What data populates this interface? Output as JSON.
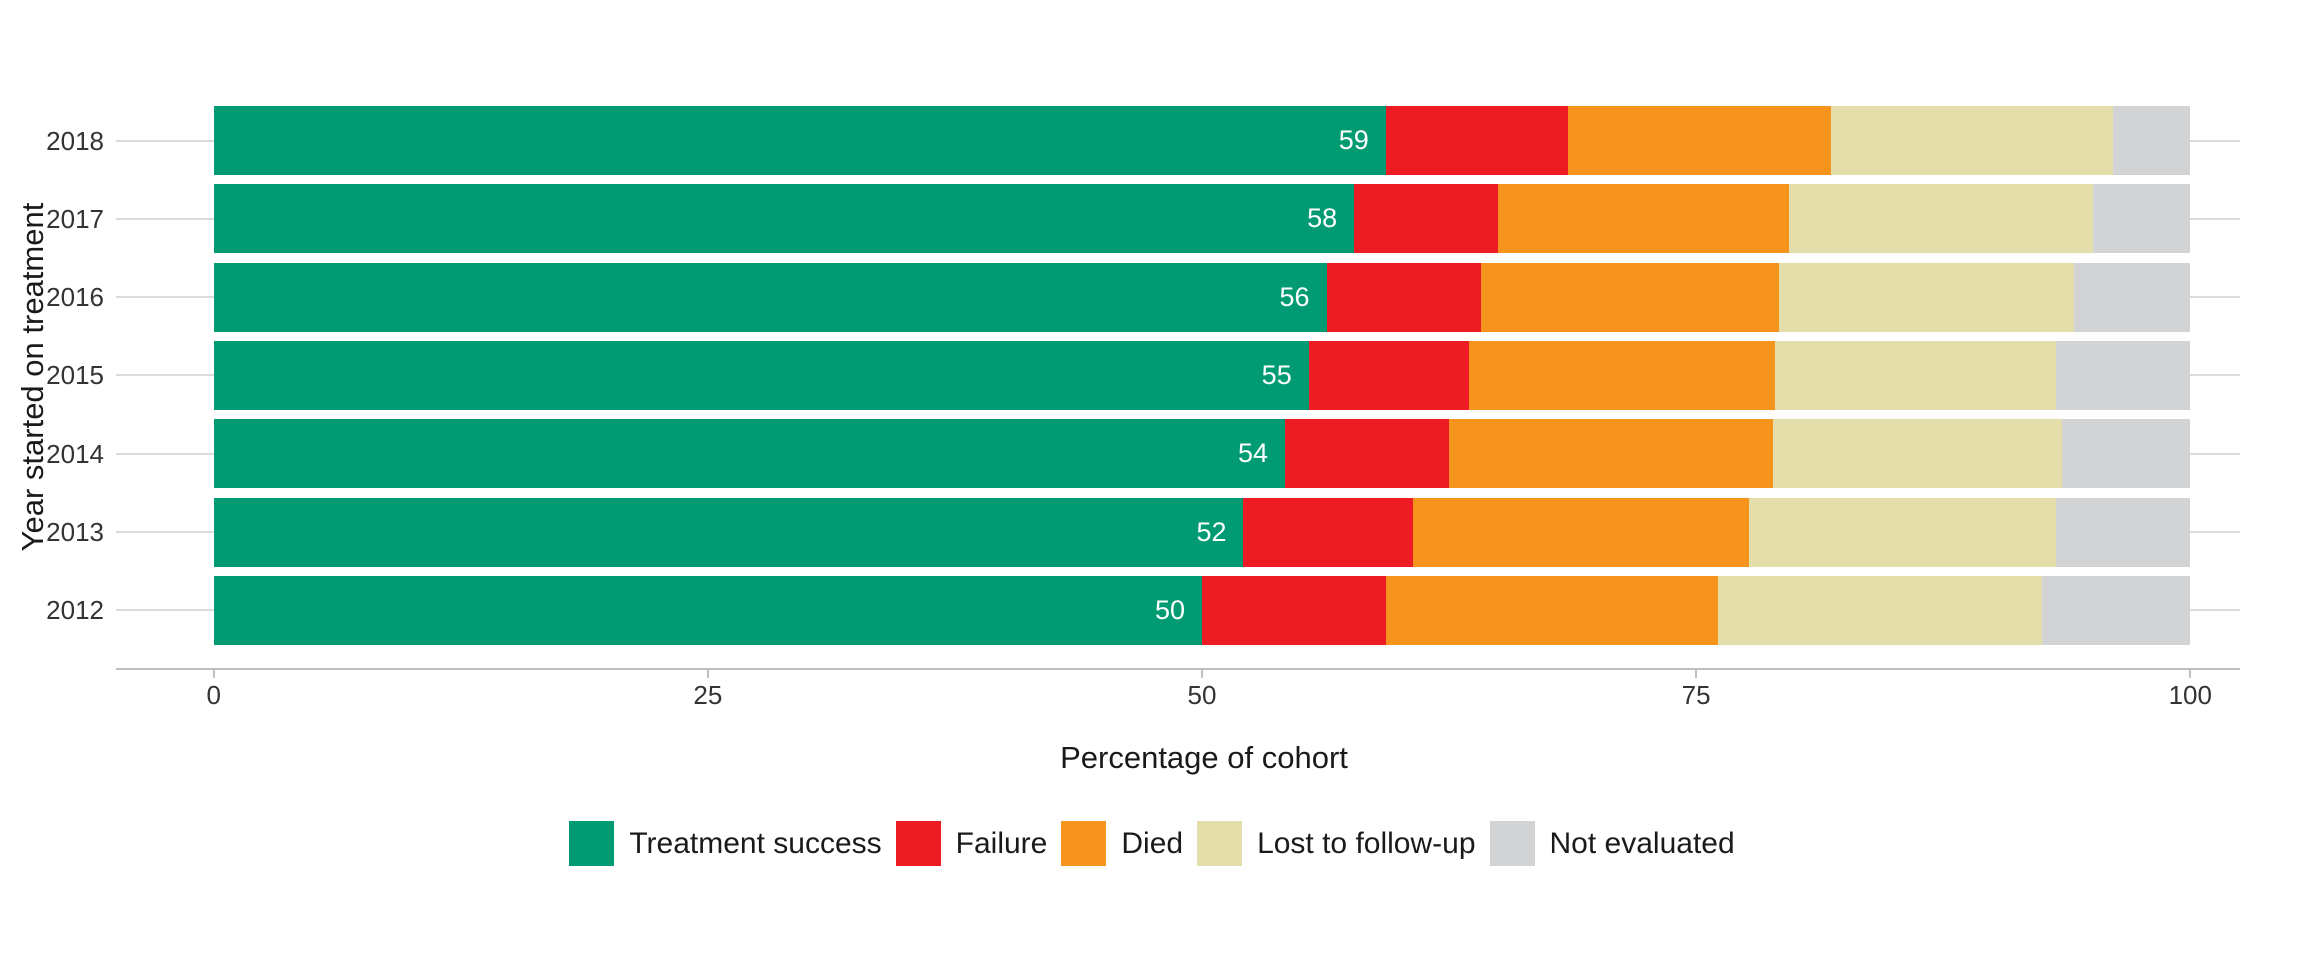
{
  "chart_data": {
    "type": "bar",
    "orientation": "horizontal",
    "stacked": true,
    "title": "",
    "xlabel": "Percentage of cohort",
    "ylabel": "Year started on treatment",
    "xlim": [
      0,
      100
    ],
    "x_ticks": [
      "0",
      "25",
      "50",
      "75",
      "100"
    ],
    "x_tick_values": [
      0,
      25,
      50,
      75,
      100
    ],
    "categories": [
      "2018",
      "2017",
      "2016",
      "2015",
      "2014",
      "2013",
      "2012"
    ],
    "series": [
      {
        "name": "Treatment success",
        "color": "#009b73",
        "values": [
          59.3,
          57.7,
          56.3,
          55.4,
          54.2,
          52.1,
          50.0
        ]
      },
      {
        "name": "Failure",
        "color": "#ed1c24",
        "values": [
          9.2,
          7.3,
          7.8,
          8.1,
          8.3,
          8.6,
          9.3
        ]
      },
      {
        "name": "Died",
        "color": "#f7941d",
        "values": [
          13.3,
          14.7,
          15.1,
          15.5,
          16.4,
          17.0,
          16.8
        ]
      },
      {
        "name": "Lost to follow-up",
        "color": "#e3deaa",
        "values": [
          14.3,
          15.4,
          14.9,
          14.2,
          14.6,
          15.5,
          16.4
        ]
      },
      {
        "name": "Not evaluated",
        "color": "#d1d3d4",
        "values": [
          3.9,
          4.9,
          5.9,
          6.8,
          6.5,
          6.8,
          7.5
        ]
      }
    ],
    "bar_labels": [
      "59",
      "58",
      "56",
      "55",
      "54",
      "52",
      "50"
    ],
    "legend_position": "bottom",
    "grid": "horizontal-light",
    "colors": {
      "axis_line": "#bfbfbf",
      "gridline": "#dbdbdb",
      "tick_text": "#333333",
      "title_text": "#1a1a1a",
      "bar_label_text": "#ffffff",
      "background": "#ffffff"
    }
  }
}
